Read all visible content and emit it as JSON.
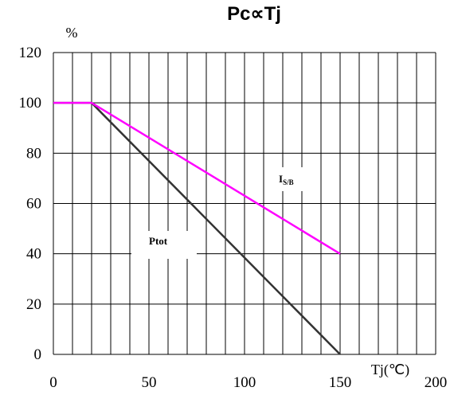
{
  "chart_data": {
    "type": "line",
    "title": "Pc∝Tj",
    "xlabel": "Tj(℃)",
    "ylabel": "%",
    "xlim": [
      0,
      200
    ],
    "ylim": [
      0,
      120
    ],
    "x_ticks": [
      "0",
      "50",
      "100",
      "150",
      "200"
    ],
    "y_ticks": [
      "0",
      "20",
      "40",
      "60",
      "80",
      "100",
      "120"
    ],
    "grid": true,
    "series": [
      {
        "name": "I",
        "name_subscript": "S/B",
        "color": "#ff00ff",
        "points": [
          [
            0,
            100
          ],
          [
            20,
            100
          ],
          [
            150,
            40
          ]
        ]
      },
      {
        "name": "Ptot",
        "color": "#333333",
        "points": [
          [
            0,
            100
          ],
          [
            20,
            100
          ],
          [
            150,
            0
          ]
        ]
      }
    ]
  }
}
